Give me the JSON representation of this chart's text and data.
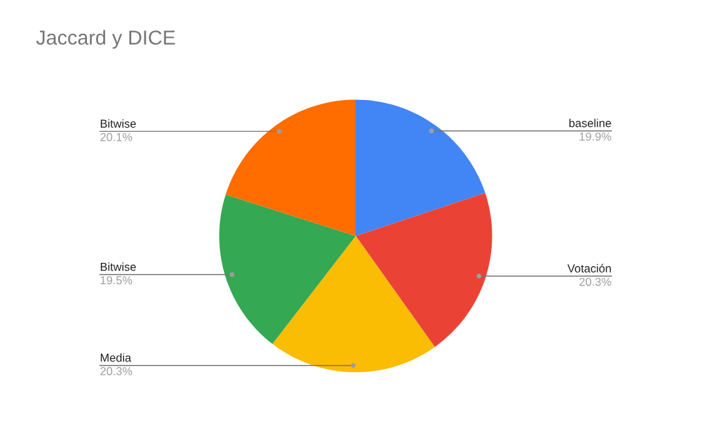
{
  "chart_data": {
    "type": "pie",
    "title": "Jaccard y DICE",
    "categories": [
      "baseline",
      "Votación",
      "Media",
      "Bitwise",
      "Bitwise"
    ],
    "values": [
      19.9,
      20.3,
      20.3,
      19.5,
      20.1
    ],
    "value_labels": [
      "19.9%",
      "20.3%",
      "20.3%",
      "19.5%",
      "20.1%"
    ],
    "colors": [
      "#4285f4",
      "#ea4335",
      "#fbbc04",
      "#34a853",
      "#ff6d01"
    ]
  }
}
